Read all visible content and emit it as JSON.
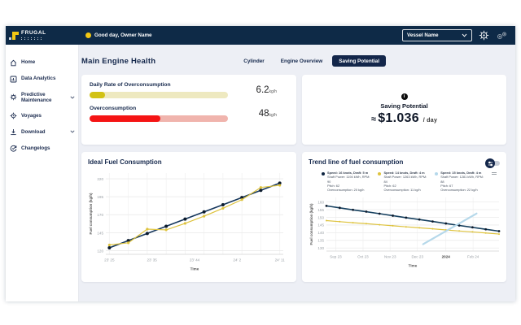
{
  "header": {
    "logo": "FRUGAL",
    "greeting": "Good day, Owner Name",
    "vessel_selector_label": "Vessel Name"
  },
  "sidebar": {
    "items": [
      {
        "label": "Home",
        "icon": "home-icon"
      },
      {
        "label": "Data Analytics",
        "icon": "bar-chart-icon"
      },
      {
        "label": "Predictive Maintenance",
        "icon": "gear-icon",
        "expandable": true
      },
      {
        "label": "Voyages",
        "icon": "helm-icon"
      },
      {
        "label": "Download",
        "icon": "download-icon",
        "expandable": true
      },
      {
        "label": "Changelogs",
        "icon": "history-icon"
      }
    ]
  },
  "main": {
    "page_title": "Main Engine Health",
    "tabs": [
      {
        "label": "Cylinder",
        "active": false
      },
      {
        "label": "Engine Overview",
        "active": false
      },
      {
        "label": "Saving Potential",
        "active": true
      }
    ],
    "metrics": {
      "daily_rate": {
        "label": "Daily Rate of Overconsumption",
        "value": "6.2",
        "unit": "kg/h",
        "fill_percent": 11,
        "fill_color": "#d2c215",
        "track_color": "#eee9c0"
      },
      "overconsumption": {
        "label": "Overconsumption",
        "value": "48",
        "unit": "kg/h",
        "fill_percent": 51,
        "fill_color": "#f51414",
        "track_color": "#f0b4ad"
      }
    },
    "saving_potential": {
      "info_glyph": "i",
      "title": "Saving Potential",
      "approx": "≈",
      "amount": "$1.036",
      "per_label": "/ day"
    }
  },
  "chart_data": [
    {
      "type": "line",
      "title": "Ideal Fuel Consumption",
      "xlabel": "Time",
      "ylabel": "Fuel consumption (kg/h)",
      "ylim": [
        115,
        228
      ],
      "yticks": [
        120,
        145,
        170,
        195,
        220
      ],
      "grid": true,
      "vgrid": [
        0.02,
        0.127,
        0.233,
        0.34,
        0.447,
        0.553,
        0.66,
        0.767,
        0.873,
        0.98
      ],
      "xticks": [
        {
          "f": 0.02,
          "label": "23' 25"
        },
        {
          "f": 0.26,
          "label": "23' 35"
        },
        {
          "f": 0.5,
          "label": "23' 44"
        },
        {
          "f": 0.74,
          "label": "24' 2"
        },
        {
          "f": 0.98,
          "label": "24' 11"
        }
      ],
      "series": [
        {
          "name": "ideal",
          "color": "#16375c",
          "marker_color": "#0c1b2e",
          "markers": true,
          "marker_r": 1,
          "width": 0.8,
          "xspan": [
            0.02,
            0.98
          ],
          "values": [
            124,
            134,
            144,
            154,
            164,
            174,
            184,
            194,
            204,
            214
          ]
        },
        {
          "name": "actual",
          "color": "#dec33e",
          "marker_color": "#dec33e",
          "markers": true,
          "marker_r": 0.8,
          "width": 0.6,
          "xspan": [
            0.02,
            0.98
          ],
          "values": [
            128,
            131,
            150,
            149,
            158,
            168,
            179,
            191,
            208,
            211
          ]
        }
      ]
    },
    {
      "type": "line",
      "title": "Trend line of fuel consumption",
      "xlabel": "Time",
      "ylabel": "Fuel consumption (kg/h)",
      "ylim": [
        128,
        163
      ],
      "yticks": [
        130,
        135,
        140,
        145,
        150,
        155,
        160
      ],
      "grid": true,
      "vgrid": [
        0.054,
        0.212,
        0.369,
        0.527,
        0.692,
        0.85
      ],
      "xticks": [
        {
          "f": 0.054,
          "label": "Sep 23"
        },
        {
          "f": 0.212,
          "label": "Oct 23"
        },
        {
          "f": 0.369,
          "label": "Nov 23"
        },
        {
          "f": 0.527,
          "label": "Dec 23"
        },
        {
          "f": 0.692,
          "label": "2024",
          "bold": true
        },
        {
          "f": 0.85,
          "label": "Feb 24"
        }
      ],
      "series": [
        {
          "name": "trend-1",
          "color": "#16405f",
          "marker_color": "#0c1b2e",
          "markers": true,
          "marker_r": 0.7,
          "width": 0.8,
          "xspan": [
            0,
            1
          ],
          "values": [
            157.5,
            156.2,
            154.9,
            153.7,
            152.4,
            151.1,
            149.8,
            148.6,
            147.3,
            146.0,
            144.7,
            143.5,
            142.2,
            141.0
          ]
        },
        {
          "name": "trend-2",
          "color": "#dec33e",
          "marker_color": "#dec33e",
          "markers": true,
          "marker_r": 0.5,
          "width": 0.6,
          "xspan": [
            0,
            1
          ],
          "values": [
            147.9,
            147.2,
            146.5,
            145.9,
            145.2,
            144.5,
            143.8,
            143.2,
            142.5,
            141.8,
            141.1,
            140.5,
            139.8,
            139.1
          ]
        },
        {
          "name": "trend-3",
          "color": "#b5d8ea",
          "markers": false,
          "width": 1.1,
          "x": [
            0.56,
            0.87
          ],
          "values": [
            132.5,
            152.5
          ]
        }
      ],
      "legends": [
        {
          "color": "#0d2440",
          "lines": [
            "Speed: 16 knots, Draft: 5 m",
            "Shaft Power: 1194 kWh, RPM: 90",
            "Pitch: 62",
            "Overconsumption: 20 kg/h"
          ]
        },
        {
          "color": "#dec33e",
          "lines": [
            "Speed: 14 knots, Draft: 4 m",
            "Shaft Power: 1263 kWh, RPM: 84",
            "Pitch: 62",
            "Overconsumption: 11 kg/h"
          ]
        },
        {
          "color": "#b5d8ea",
          "lines": [
            "Speed: 15 knots, Draft: 4 m",
            "Shaft Power: 1281 kWh, RPM: 88",
            "Pitch: 67",
            "Overconsumption: 22 kg/h"
          ]
        }
      ]
    }
  ]
}
